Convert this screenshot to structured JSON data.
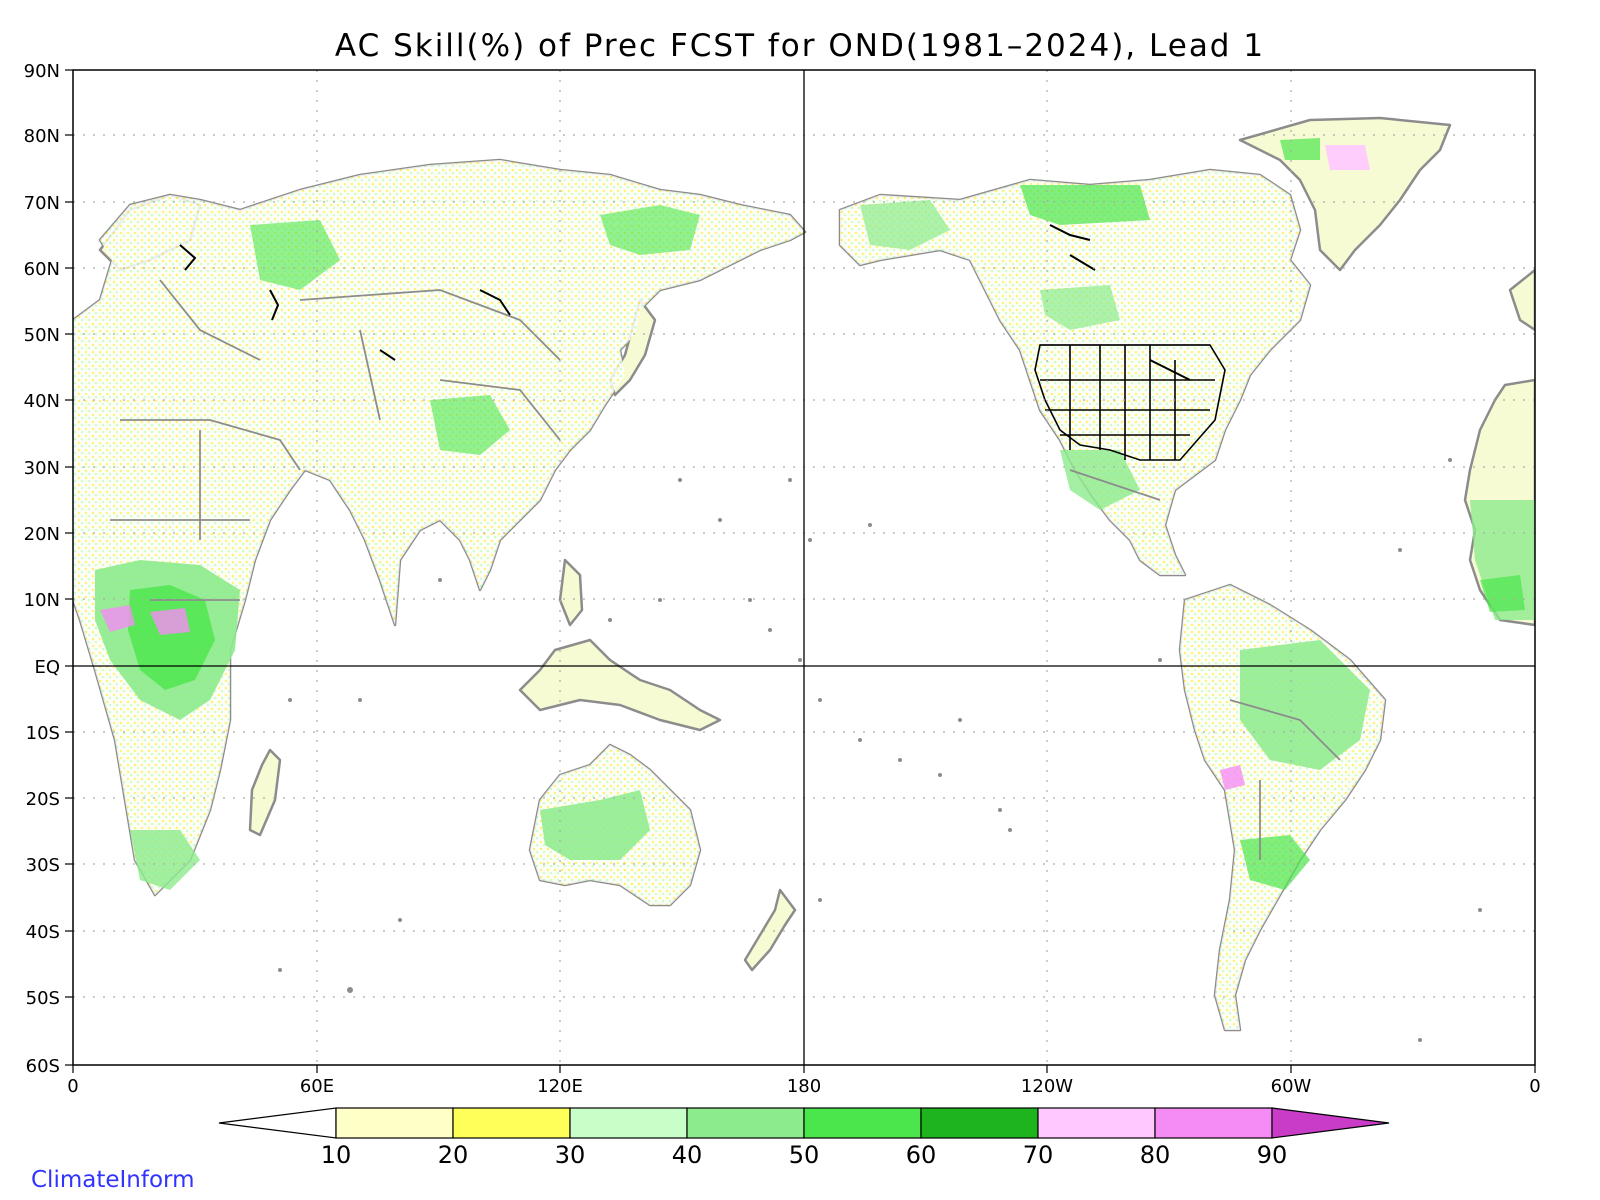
{
  "title": "AC Skill(%) of Prec FCST for OND(1981–2024), Lead 1",
  "brand": "ClimateInform",
  "map": {
    "projection": "equirectangular",
    "lon_range": [
      0,
      360
    ],
    "lat_range": [
      -60,
      90
    ],
    "grid": "dotted",
    "reference_lines": [
      "equator",
      "180 meridian"
    ],
    "lat_ticks": [
      "90N",
      "80N",
      "70N",
      "60N",
      "50N",
      "40N",
      "30N",
      "20N",
      "10N",
      "EQ",
      "10S",
      "20S",
      "30S",
      "40S",
      "50S",
      "60S"
    ],
    "lon_ticks": [
      "0",
      "60E",
      "120E",
      "180",
      "120W",
      "60W",
      "0"
    ]
  },
  "colorbar": {
    "breaks": [
      "10",
      "20",
      "30",
      "40",
      "50",
      "60",
      "70",
      "80",
      "90"
    ],
    "colors": [
      "#ffffff",
      "#ffffc8",
      "#ffff5a",
      "#c8ffc8",
      "#8ceb8c",
      "#4be64b",
      "#1eb41e",
      "#ffc8ff",
      "#f58cf5",
      "#c83cc8"
    ]
  },
  "colors": {
    "coast": "#8c8c8c",
    "lakes": "#000000",
    "brand": "#3333ff",
    "grid": "#aaaaaa"
  }
}
